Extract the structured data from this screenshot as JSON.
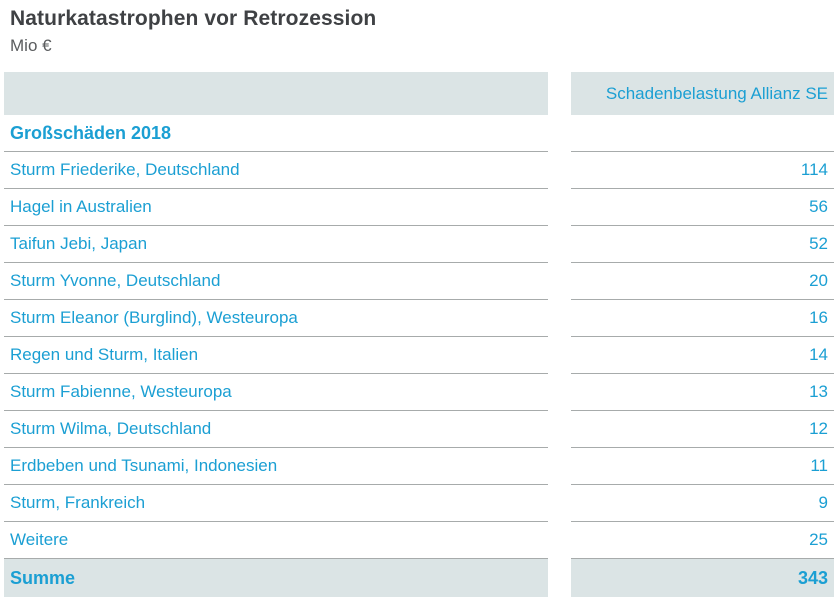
{
  "header": {
    "title": "Naturkatastrophen vor Retrozession",
    "subtitle": "Mio €"
  },
  "chart_data": {
    "type": "table",
    "title": "Naturkatastrophen vor Retrozession",
    "unit": "Mio €",
    "value_column_header": "Schadenbelastung Allianz SE",
    "section_header": "Großschäden 2018",
    "rows": [
      {
        "label": "Sturm Friederike, Deutschland",
        "value": 114
      },
      {
        "label": "Hagel in Australien",
        "value": 56
      },
      {
        "label": "Taifun Jebi, Japan",
        "value": 52
      },
      {
        "label": "Sturm Yvonne, Deutschland",
        "value": 20
      },
      {
        "label": "Sturm Eleanor (Burglind), Westeuropa",
        "value": 16
      },
      {
        "label": "Regen und Sturm, Italien",
        "value": 14
      },
      {
        "label": "Sturm Fabienne, Westeuropa",
        "value": 13
      },
      {
        "label": "Sturm Wilma, Deutschland",
        "value": 12
      },
      {
        "label": "Erdbeben und Tsunami, Indonesien",
        "value": 11
      },
      {
        "label": "Sturm, Frankreich",
        "value": 9
      },
      {
        "label": "Weitere",
        "value": 25
      }
    ],
    "total": {
      "label": "Summe",
      "value": 343
    }
  },
  "colors": {
    "accent_teal": "#1b9fd3",
    "band_background": "#dbe4e5",
    "divider_gray": "#a7abab",
    "title_gray": "#3f4144",
    "subtitle_gray": "#5a5c5e"
  }
}
